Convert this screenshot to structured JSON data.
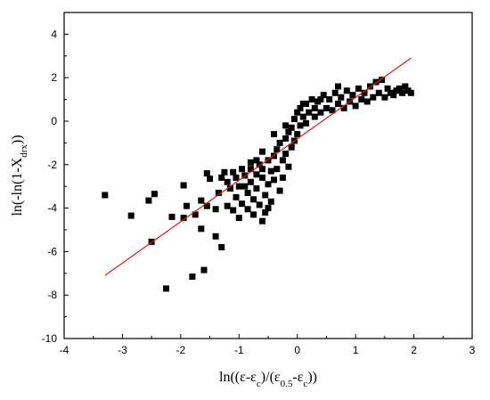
{
  "chart_data": {
    "type": "scatter",
    "title": "",
    "xlabel": "ln((ε-εc)/(ε0.5-εc))",
    "ylabel": "ln(-ln(1-Xdrx))",
    "xlabel_parts": [
      {
        "text": "ln((ε-ε",
        "sub": false
      },
      {
        "text": "c",
        "sub": true
      },
      {
        "text": ")/(ε",
        "sub": false
      },
      {
        "text": "0.5",
        "sub": true
      },
      {
        "text": "-ε",
        "sub": false
      },
      {
        "text": "c",
        "sub": true
      },
      {
        "text": "))",
        "sub": false
      }
    ],
    "ylabel_parts": [
      {
        "text": "ln(-ln(1-X",
        "sub": false
      },
      {
        "text": "drx",
        "sub": true
      },
      {
        "text": "))",
        "sub": false
      }
    ],
    "xlim": [
      -4,
      3
    ],
    "ylim": [
      -10,
      5
    ],
    "xticks": [
      -4,
      -3,
      -2,
      -1,
      0,
      1,
      2,
      3
    ],
    "yticks": [
      -10,
      -8,
      -6,
      -4,
      -2,
      0,
      2,
      4
    ],
    "xtick_labels": [
      "-4",
      "-3",
      "-2",
      "-1",
      "0",
      "1",
      "2",
      "3"
    ],
    "ytick_labels": [
      "-10",
      "-8",
      "-6",
      "-4",
      "-2",
      "0",
      "2",
      "4"
    ],
    "grid": false,
    "legend": "none",
    "colors": {
      "points": "#000000",
      "fit_line": "#e8151c",
      "axis": "#000000"
    },
    "fit_line": {
      "x": [
        -3.3,
        1.95
      ],
      "y": [
        -7.1,
        2.9
      ]
    },
    "series": [
      {
        "marker": "square",
        "points": [
          [
            -3.3,
            -3.4
          ],
          [
            -2.85,
            -4.35
          ],
          [
            -2.55,
            -3.65
          ],
          [
            -2.45,
            -3.35
          ],
          [
            -2.5,
            -5.55
          ],
          [
            -2.25,
            -7.7
          ],
          [
            -2.15,
            -4.4
          ],
          [
            -1.95,
            -2.95
          ],
          [
            -1.9,
            -3.9
          ],
          [
            -1.95,
            -4.45
          ],
          [
            -1.8,
            -7.15
          ],
          [
            -1.75,
            -4.3
          ],
          [
            -1.6,
            -6.85
          ],
          [
            -1.65,
            -3.65
          ],
          [
            -1.65,
            -4.95
          ],
          [
            -1.55,
            -3.9
          ],
          [
            -1.55,
            -2.4
          ],
          [
            -1.5,
            -2.65
          ],
          [
            -1.4,
            -4.05
          ],
          [
            -1.4,
            -5.3
          ],
          [
            -1.35,
            -3.3
          ],
          [
            -1.3,
            -5.8
          ],
          [
            -1.25,
            -2.35
          ],
          [
            -1.2,
            -3.9
          ],
          [
            -1.15,
            -3.1
          ],
          [
            -1.1,
            -2.35
          ],
          [
            -1.1,
            -4.1
          ],
          [
            -1.05,
            -3.5
          ],
          [
            -1.05,
            -2.6
          ],
          [
            -1.0,
            -4.45
          ],
          [
            -1.0,
            -3.0
          ],
          [
            -0.95,
            -2.2
          ],
          [
            -0.95,
            -3.8
          ],
          [
            -0.9,
            -2.5
          ],
          [
            -0.85,
            -3.3
          ],
          [
            -0.85,
            -4.05
          ],
          [
            -0.8,
            -2.8
          ],
          [
            -0.8,
            -2.2
          ],
          [
            -0.75,
            -3.6
          ],
          [
            -0.75,
            -4.3
          ],
          [
            -0.7,
            -2.45
          ],
          [
            -0.7,
            -3.1
          ],
          [
            -0.65,
            -2.0
          ],
          [
            -0.65,
            -3.85
          ],
          [
            -0.6,
            -2.6
          ],
          [
            -0.6,
            -2.2
          ],
          [
            -0.55,
            -3.4
          ],
          [
            -0.55,
            -4.2
          ],
          [
            -0.5,
            -1.8
          ],
          [
            -0.5,
            -2.9
          ],
          [
            -0.45,
            -2.3
          ],
          [
            -0.45,
            -3.7
          ],
          [
            -0.4,
            -1.6
          ],
          [
            -0.4,
            -2.7
          ],
          [
            -0.35,
            -1.3
          ],
          [
            -0.35,
            -2.2
          ],
          [
            -0.3,
            -3.2
          ],
          [
            -0.3,
            -1.0
          ],
          [
            -0.25,
            -1.8
          ],
          [
            -0.25,
            -2.6
          ],
          [
            -0.2,
            -0.8
          ],
          [
            -0.2,
            -1.5
          ],
          [
            -0.15,
            -2.1
          ],
          [
            -0.15,
            -0.5
          ],
          [
            -0.1,
            -1.2
          ],
          [
            -0.1,
            -0.3
          ],
          [
            -0.05,
            -0.9
          ],
          [
            -0.05,
            0.1
          ],
          [
            0.0,
            -0.6
          ],
          [
            0.0,
            0.4
          ],
          [
            0.05,
            -0.2
          ],
          [
            0.05,
            0.6
          ],
          [
            0.1,
            0.2
          ],
          [
            0.15,
            0.8
          ],
          [
            0.15,
            -0.1
          ],
          [
            0.2,
            0.4
          ],
          [
            0.25,
            1.0
          ],
          [
            0.3,
            0.2
          ],
          [
            0.3,
            0.6
          ],
          [
            0.35,
            0.9
          ],
          [
            0.4,
            0.4
          ],
          [
            0.45,
            1.2
          ],
          [
            0.5,
            0.6
          ],
          [
            0.55,
            1.0
          ],
          [
            0.6,
            0.5
          ],
          [
            0.65,
            1.3
          ],
          [
            0.7,
            0.8
          ],
          [
            0.75,
            1.1
          ],
          [
            0.8,
            0.6
          ],
          [
            0.85,
            1.4
          ],
          [
            0.9,
            0.9
          ],
          [
            0.95,
            1.2
          ],
          [
            1.0,
            0.7
          ],
          [
            1.05,
            1.5
          ],
          [
            1.1,
            1.0
          ],
          [
            1.15,
            1.3
          ],
          [
            1.2,
            0.9
          ],
          [
            1.25,
            1.6
          ],
          [
            1.3,
            1.1
          ],
          [
            1.35,
            1.8
          ],
          [
            1.4,
            1.3
          ],
          [
            1.45,
            1.9
          ],
          [
            1.5,
            1.1
          ],
          [
            1.55,
            1.5
          ],
          [
            1.6,
            1.3
          ],
          [
            1.65,
            1.2
          ],
          [
            1.7,
            1.4
          ],
          [
            1.75,
            1.5
          ],
          [
            1.8,
            1.3
          ],
          [
            1.85,
            1.6
          ],
          [
            1.9,
            1.4
          ],
          [
            1.95,
            1.3
          ],
          [
            -0.6,
            -1.4
          ],
          [
            -0.4,
            -0.6
          ],
          [
            -0.2,
            -0.2
          ],
          [
            0.1,
            0.8
          ],
          [
            0.4,
            1.0
          ],
          [
            0.7,
            1.6
          ],
          [
            -0.8,
            -1.9
          ],
          [
            -1.2,
            -2.8
          ],
          [
            -0.9,
            -3.0
          ],
          [
            -0.7,
            -1.8
          ],
          [
            -1.3,
            -2.6
          ],
          [
            -0.5,
            -4.0
          ],
          [
            -0.6,
            -4.6
          ]
        ]
      }
    ]
  }
}
